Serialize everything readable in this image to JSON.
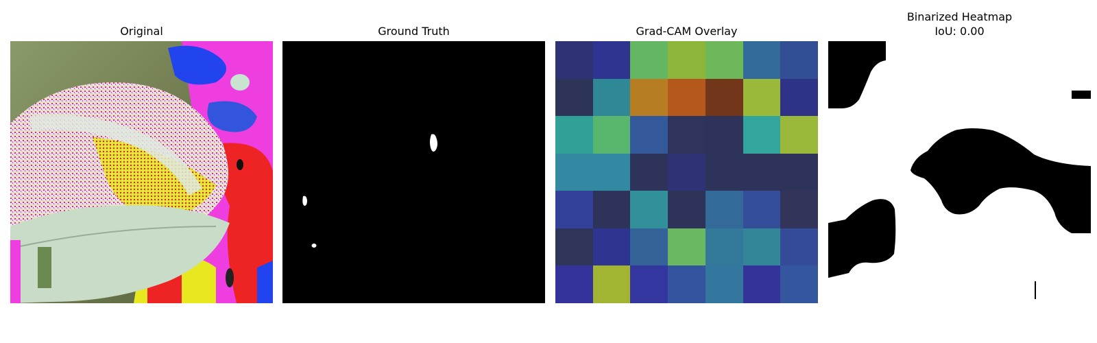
{
  "panels": [
    {
      "title": "Original"
    },
    {
      "title": "Ground Truth"
    },
    {
      "title": "Grad-CAM Overlay"
    },
    {
      "title": "Binarized Heatmap",
      "subtitle": "IoU: 0.00"
    }
  ],
  "gradcam_grid": [
    [
      "#2f3275",
      "#2f3490",
      "#65b662",
      "#8eb53b",
      "#6fb85a",
      "#336a9a",
      "#324f96"
    ],
    [
      "#2d3457",
      "#2f8895",
      "#b67d22",
      "#b4581c",
      "#72371a",
      "#9ab93a",
      "#2f3388"
    ],
    [
      "#31a097",
      "#58b66f",
      "#33599a",
      "#2f345a",
      "#2e3459",
      "#33a59c",
      "#9ab93a"
    ],
    [
      "#3289a1",
      "#3289a1",
      "#2e3459",
      "#2f3275",
      "#2e3459",
      "#2e3459",
      "#2e3459"
    ],
    [
      "#324099",
      "#2e3459",
      "#31909a",
      "#2e3459",
      "#336a9a",
      "#344e9a",
      "#333459"
    ],
    [
      "#2f3459",
      "#2f3490",
      "#336398",
      "#6ab862",
      "#33799a",
      "#33869a",
      "#344b9a"
    ],
    [
      "#33339b",
      "#a2b431",
      "#33369e",
      "#34559e",
      "#33779e",
      "#33339a",
      "#33569e"
    ]
  ]
}
